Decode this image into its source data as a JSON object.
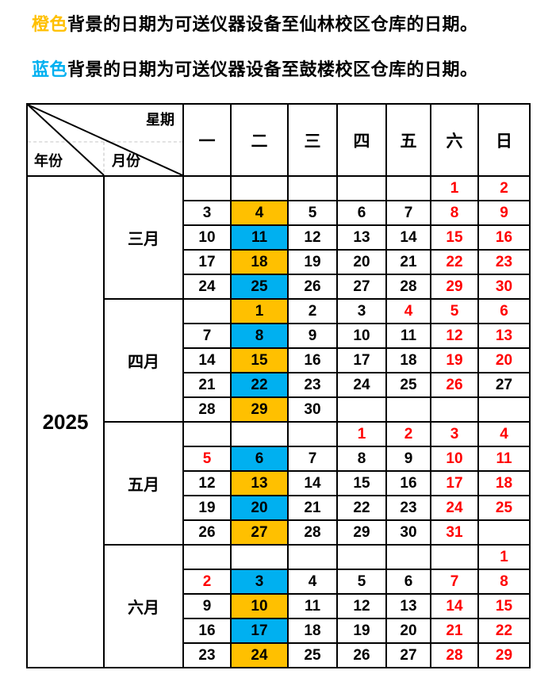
{
  "legend": {
    "orange": {
      "keyword": "橙色",
      "text": "背景的日期为可送仪器设备至仙林校区仓库的日期。",
      "keyword_color": "#FFC000"
    },
    "blue": {
      "keyword": "蓝色",
      "text": "背景的日期为可送仪器设备至鼓楼校区仓库的日期。",
      "keyword_color": "#00B0F0"
    }
  },
  "table": {
    "corner": {
      "week": "星期",
      "year": "年份",
      "month": "月份"
    },
    "weekdays": [
      "一",
      "二",
      "三",
      "四",
      "五",
      "六",
      "日"
    ],
    "year": "2025",
    "colors": {
      "orange": "#FFC000",
      "blue": "#00B0F0",
      "red": "#FF0000",
      "black": "#000000"
    },
    "months": [
      {
        "key": "march",
        "name": "三月",
        "weeks": [
          [
            null,
            null,
            null,
            null,
            null,
            {
              "t": "1",
              "fg": "red"
            },
            {
              "t": "2",
              "fg": "red"
            }
          ],
          [
            {
              "t": "3"
            },
            {
              "t": "4",
              "bg": "orange"
            },
            {
              "t": "5"
            },
            {
              "t": "6"
            },
            {
              "t": "7"
            },
            {
              "t": "8",
              "fg": "red"
            },
            {
              "t": "9",
              "fg": "red"
            }
          ],
          [
            {
              "t": "10"
            },
            {
              "t": "11",
              "bg": "blue"
            },
            {
              "t": "12"
            },
            {
              "t": "13"
            },
            {
              "t": "14"
            },
            {
              "t": "15",
              "fg": "red"
            },
            {
              "t": "16",
              "fg": "red"
            }
          ],
          [
            {
              "t": "17"
            },
            {
              "t": "18",
              "bg": "orange"
            },
            {
              "t": "19"
            },
            {
              "t": "20"
            },
            {
              "t": "21"
            },
            {
              "t": "22",
              "fg": "red"
            },
            {
              "t": "23",
              "fg": "red"
            }
          ],
          [
            {
              "t": "24"
            },
            {
              "t": "25",
              "bg": "blue"
            },
            {
              "t": "26"
            },
            {
              "t": "27"
            },
            {
              "t": "28"
            },
            {
              "t": "29",
              "fg": "red"
            },
            {
              "t": "30",
              "fg": "red"
            }
          ]
        ]
      },
      {
        "key": "april",
        "name": "四月",
        "weeks": [
          [
            null,
            {
              "t": "1",
              "bg": "orange"
            },
            {
              "t": "2"
            },
            {
              "t": "3"
            },
            {
              "t": "4",
              "fg": "red"
            },
            {
              "t": "5",
              "fg": "red"
            },
            {
              "t": "6",
              "fg": "red"
            }
          ],
          [
            {
              "t": "7"
            },
            {
              "t": "8",
              "bg": "blue"
            },
            {
              "t": "9"
            },
            {
              "t": "10"
            },
            {
              "t": "11"
            },
            {
              "t": "12",
              "fg": "red"
            },
            {
              "t": "13",
              "fg": "red"
            }
          ],
          [
            {
              "t": "14"
            },
            {
              "t": "15",
              "bg": "orange"
            },
            {
              "t": "16"
            },
            {
              "t": "17"
            },
            {
              "t": "18"
            },
            {
              "t": "19",
              "fg": "red"
            },
            {
              "t": "20",
              "fg": "red"
            }
          ],
          [
            {
              "t": "21"
            },
            {
              "t": "22",
              "bg": "blue"
            },
            {
              "t": "23"
            },
            {
              "t": "24"
            },
            {
              "t": "25"
            },
            {
              "t": "26",
              "fg": "red"
            },
            {
              "t": "27"
            }
          ],
          [
            {
              "t": "28"
            },
            {
              "t": "29",
              "bg": "orange"
            },
            {
              "t": "30"
            },
            null,
            null,
            null,
            null
          ]
        ]
      },
      {
        "key": "may",
        "name": "五月",
        "weeks": [
          [
            null,
            null,
            null,
            {
              "t": "1",
              "fg": "red"
            },
            {
              "t": "2",
              "fg": "red"
            },
            {
              "t": "3",
              "fg": "red"
            },
            {
              "t": "4",
              "fg": "red"
            }
          ],
          [
            {
              "t": "5",
              "fg": "red"
            },
            {
              "t": "6",
              "bg": "blue"
            },
            {
              "t": "7"
            },
            {
              "t": "8"
            },
            {
              "t": "9"
            },
            {
              "t": "10",
              "fg": "red"
            },
            {
              "t": "11",
              "fg": "red"
            }
          ],
          [
            {
              "t": "12"
            },
            {
              "t": "13",
              "bg": "orange"
            },
            {
              "t": "14"
            },
            {
              "t": "15"
            },
            {
              "t": "16"
            },
            {
              "t": "17",
              "fg": "red"
            },
            {
              "t": "18",
              "fg": "red"
            }
          ],
          [
            {
              "t": "19"
            },
            {
              "t": "20",
              "bg": "blue"
            },
            {
              "t": "21"
            },
            {
              "t": "22"
            },
            {
              "t": "23"
            },
            {
              "t": "24",
              "fg": "red"
            },
            {
              "t": "25",
              "fg": "red"
            }
          ],
          [
            {
              "t": "26"
            },
            {
              "t": "27",
              "bg": "orange"
            },
            {
              "t": "28"
            },
            {
              "t": "29"
            },
            {
              "t": "30"
            },
            {
              "t": "31",
              "fg": "red"
            },
            null
          ]
        ]
      },
      {
        "key": "june",
        "name": "六月",
        "weeks": [
          [
            null,
            null,
            null,
            null,
            null,
            null,
            {
              "t": "1",
              "fg": "red"
            }
          ],
          [
            {
              "t": "2",
              "fg": "red"
            },
            {
              "t": "3",
              "bg": "blue"
            },
            {
              "t": "4"
            },
            {
              "t": "5"
            },
            {
              "t": "6"
            },
            {
              "t": "7",
              "fg": "red"
            },
            {
              "t": "8",
              "fg": "red"
            }
          ],
          [
            {
              "t": "9"
            },
            {
              "t": "10",
              "bg": "orange"
            },
            {
              "t": "11"
            },
            {
              "t": "12"
            },
            {
              "t": "13"
            },
            {
              "t": "14",
              "fg": "red"
            },
            {
              "t": "15",
              "fg": "red"
            }
          ],
          [
            {
              "t": "16"
            },
            {
              "t": "17",
              "bg": "blue"
            },
            {
              "t": "18"
            },
            {
              "t": "19"
            },
            {
              "t": "20"
            },
            {
              "t": "21",
              "fg": "red"
            },
            {
              "t": "22",
              "fg": "red"
            }
          ],
          [
            {
              "t": "23"
            },
            {
              "t": "24",
              "bg": "orange"
            },
            {
              "t": "25"
            },
            {
              "t": "26"
            },
            {
              "t": "27"
            },
            {
              "t": "28",
              "fg": "red"
            },
            {
              "t": "29",
              "fg": "red"
            }
          ]
        ]
      }
    ]
  }
}
